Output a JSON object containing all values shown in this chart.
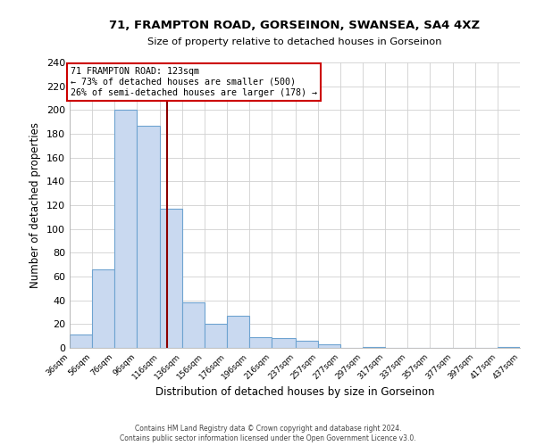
{
  "title": "71, FRAMPTON ROAD, GORSEINON, SWANSEA, SA4 4XZ",
  "subtitle": "Size of property relative to detached houses in Gorseinon",
  "xlabel": "Distribution of detached houses by size in Gorseinon",
  "ylabel": "Number of detached properties",
  "bar_edges": [
    36,
    56,
    76,
    96,
    116,
    136,
    156,
    176,
    196,
    216,
    237,
    257,
    277,
    297,
    317,
    337,
    357,
    377,
    397,
    417,
    437
  ],
  "bar_heights": [
    11,
    66,
    200,
    187,
    117,
    38,
    20,
    27,
    9,
    8,
    6,
    3,
    0,
    1,
    0,
    0,
    0,
    0,
    0,
    1
  ],
  "bar_color": "#c9d9f0",
  "bar_edge_color": "#6ea3d0",
  "vline_x": 123,
  "vline_color": "#8b0000",
  "annotation_title": "71 FRAMPTON ROAD: 123sqm",
  "annotation_line1": "← 73% of detached houses are smaller (500)",
  "annotation_line2": "26% of semi-detached houses are larger (178) →",
  "annotation_box_color": "#cc0000",
  "annotation_bg_color": "#ffffff",
  "ylim": [
    0,
    240
  ],
  "yticks": [
    0,
    20,
    40,
    60,
    80,
    100,
    120,
    140,
    160,
    180,
    200,
    220,
    240
  ],
  "tick_labels": [
    "36sqm",
    "56sqm",
    "76sqm",
    "96sqm",
    "116sqm",
    "136sqm",
    "156sqm",
    "176sqm",
    "196sqm",
    "216sqm",
    "237sqm",
    "257sqm",
    "277sqm",
    "297sqm",
    "317sqm",
    "337sqm",
    "357sqm",
    "377sqm",
    "397sqm",
    "417sqm",
    "437sqm"
  ],
  "footer_line1": "Contains HM Land Registry data © Crown copyright and database right 2024.",
  "footer_line2": "Contains public sector information licensed under the Open Government Licence v3.0.",
  "bg_color": "#ffffff",
  "grid_color": "#d0d0d0"
}
